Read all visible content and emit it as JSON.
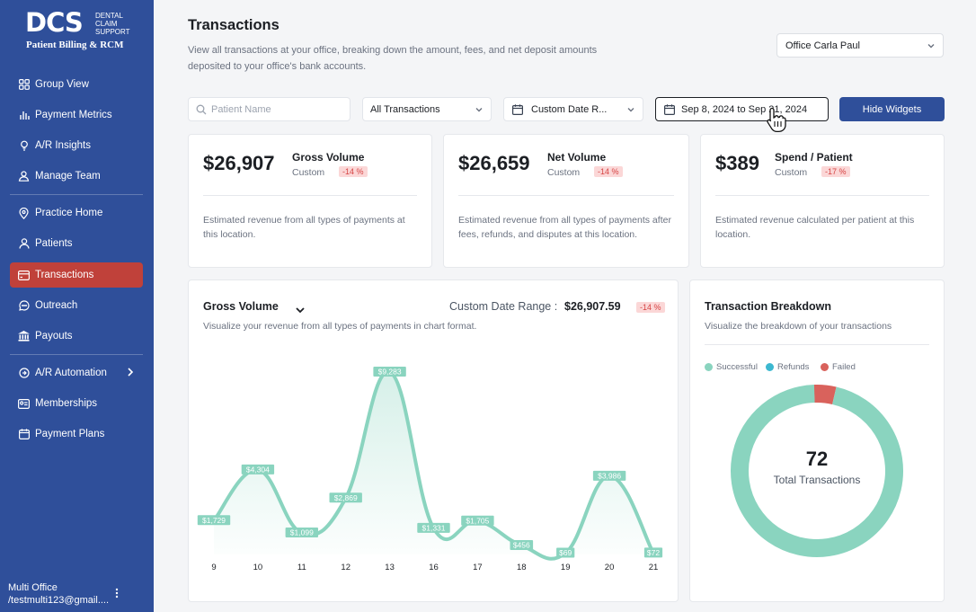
{
  "brand": {
    "logo_mark": "DCS",
    "logo_small": [
      "DENTAL",
      "CLAIM",
      "SUPPORT"
    ],
    "tagline": "Patient Billing & RCM"
  },
  "sidebar": {
    "group1": [
      {
        "label": "Group View",
        "icon": "grid-icon"
      },
      {
        "label": "Payment Metrics",
        "icon": "bar-chart-icon"
      },
      {
        "label": "A/R Insights",
        "icon": "lightbulb-icon"
      },
      {
        "label": "Manage Team",
        "icon": "team-icon"
      }
    ],
    "group2": [
      {
        "label": "Practice Home",
        "icon": "location-pin-icon"
      },
      {
        "label": "Patients",
        "icon": "user-icon"
      },
      {
        "label": "Transactions",
        "icon": "card-icon",
        "active": true
      },
      {
        "label": "Outreach",
        "icon": "chat-icon"
      },
      {
        "label": "Payouts",
        "icon": "bank-icon"
      }
    ],
    "group3": [
      {
        "label": "A/R Automation",
        "icon": "automation-icon",
        "has_submenu": true
      },
      {
        "label": "Memberships",
        "icon": "membership-icon"
      },
      {
        "label": "Payment Plans",
        "icon": "payment-plan-icon"
      }
    ],
    "user": {
      "name": "Multi Office",
      "email": "/testmulti123@gmail...."
    }
  },
  "header": {
    "title": "Transactions",
    "subtitle": "View all transactions at your office, breaking down the amount, fees, and net deposit amounts deposited to your office's bank accounts.",
    "office_select": "Office Carla Paul"
  },
  "filters": {
    "search_placeholder": "Patient Name",
    "transaction_type": "All Transactions",
    "date_preset": "Custom Date R...",
    "date_range": "Sep 8, 2024 to Sep 21, 2024",
    "hide_widgets": "Hide Widgets"
  },
  "stats": [
    {
      "value": "$26,907",
      "label": "Gross Volume",
      "sub": "Custom",
      "change": "-14 %",
      "desc": "Estimated revenue from all types of payments at this location."
    },
    {
      "value": "$26,659",
      "label": "Net Volume",
      "sub": "Custom",
      "change": "-14 %",
      "desc": "Estimated revenue from all types of payments after fees, refunds, and disputes at this location."
    },
    {
      "value": "$389",
      "label": "Spend / Patient",
      "sub": "Custom",
      "change": "-17 %",
      "desc": "Estimated revenue calculated per patient at this location."
    }
  ],
  "gross_chart": {
    "title": "Gross Volume",
    "subtitle": "Visualize your revenue from all types of payments in chart format.",
    "range_label": "Custom Date Range :",
    "range_value": "$26,907.59",
    "change": "-14 %"
  },
  "breakdown": {
    "title": "Transaction Breakdown",
    "subtitle": "Visualize the breakdown of your transactions",
    "total": "72",
    "total_label": "Total Transactions"
  },
  "colors": {
    "sidebar": "#2f4f9a",
    "active": "#c0413a",
    "successful": "#8ad4bf",
    "refunds": "#3cb8d0",
    "failed": "#d9625c"
  },
  "chart_data": [
    {
      "type": "area",
      "categories": [
        "9",
        "10",
        "11",
        "12",
        "13",
        "16",
        "17",
        "18",
        "19",
        "20",
        "21"
      ],
      "values": [
        1729,
        4304,
        1099,
        2869,
        9283,
        1331,
        1705,
        456,
        69,
        3986,
        72
      ],
      "labels": [
        "$1,729",
        "$4,304",
        "$1,099",
        "$2,869",
        "$9,283",
        "$1,331",
        "$1,705",
        "$456",
        "$69",
        "$3,986",
        "$72"
      ],
      "ylim": [
        0,
        9283
      ]
    },
    {
      "type": "pie",
      "legend": [
        "Successful",
        "Refunds",
        "Failed"
      ],
      "values": [
        69,
        0,
        3
      ],
      "center_value": "72",
      "center_label": "Total Transactions"
    }
  ]
}
